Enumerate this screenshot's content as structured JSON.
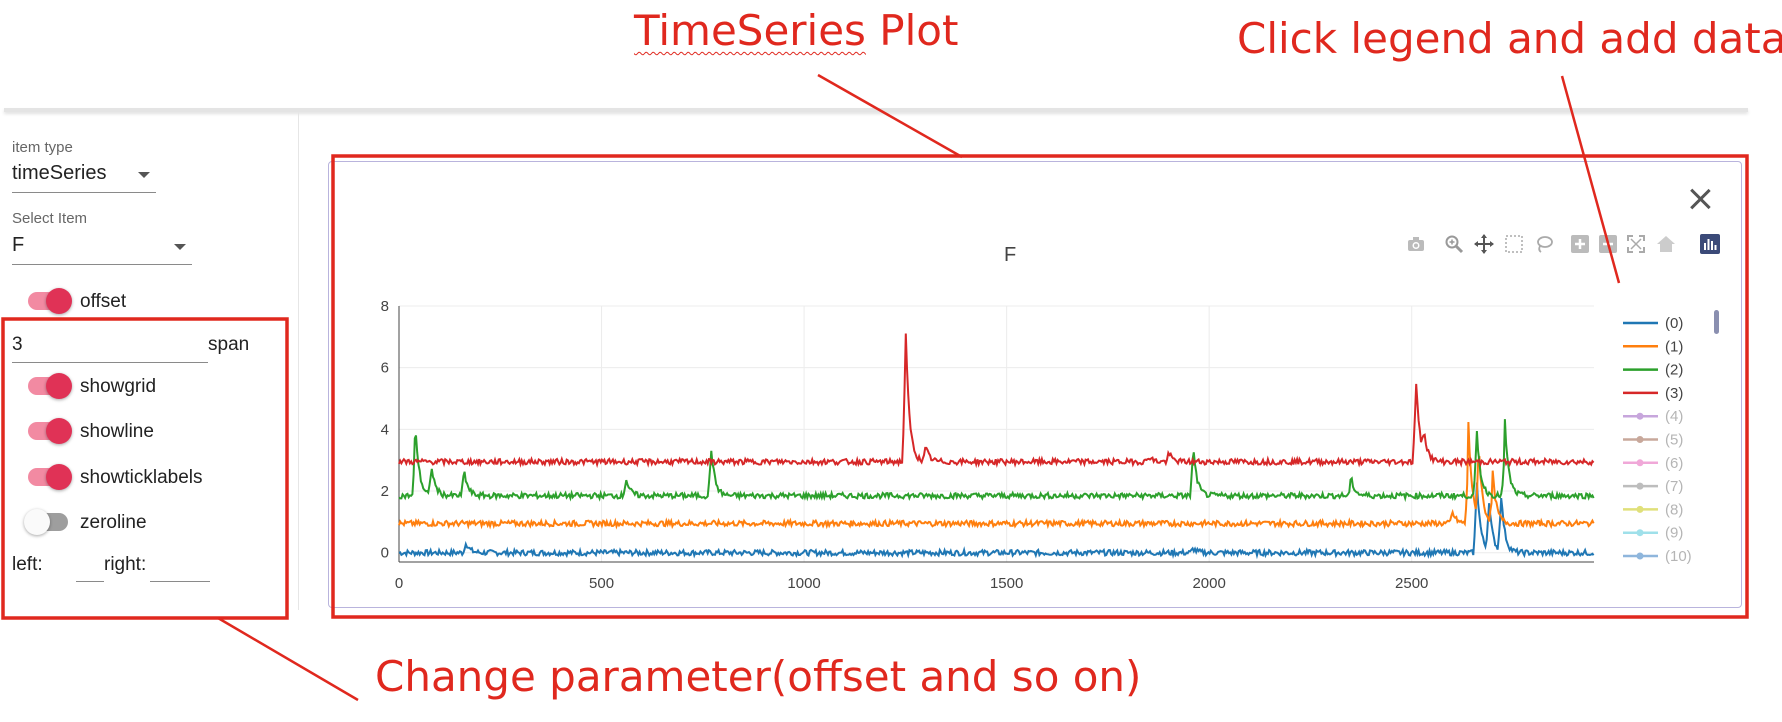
{
  "annotations": {
    "plot_label_a": "TimeSeries",
    "plot_label_b": " Plot",
    "legend_hint": "Click legend and add data",
    "params_hint": "Change parameter(offset and so on)"
  },
  "sidebar": {
    "item_type": {
      "label": "item type",
      "value": "timeSeries"
    },
    "select_item": {
      "label": "Select Item",
      "value": "F"
    },
    "offset": {
      "label": "offset",
      "on": true
    },
    "span": {
      "value": "3",
      "label": "span"
    },
    "showgrid": {
      "label": "showgrid",
      "on": true
    },
    "showline": {
      "label": "showline",
      "on": true
    },
    "showticklabels": {
      "label": "showticklabels",
      "on": true
    },
    "zeroline": {
      "label": "zeroline",
      "on": false
    },
    "left": {
      "label": "left:",
      "value": ""
    },
    "right": {
      "label": "right:",
      "value": ""
    }
  },
  "plot": {
    "title": "F",
    "toolbar": [
      "camera-icon",
      "zoom-icon",
      "pan-icon",
      "box-select-icon",
      "lasso-icon",
      "zoom-in-icon",
      "zoom-out-icon",
      "autoscale-icon",
      "reset-axes-icon",
      "plotly-logo-icon"
    ]
  },
  "chart_data": {
    "type": "line",
    "title": "F",
    "xlabel": "",
    "ylabel": "",
    "xlim": [
      0,
      2950
    ],
    "ylim": [
      -0.3,
      8
    ],
    "xticks": [
      0,
      500,
      1000,
      1500,
      2000,
      2500
    ],
    "yticks": [
      0,
      2,
      4,
      6,
      8
    ],
    "grid": true,
    "legend_position": "right",
    "series": [
      {
        "name": "(0)",
        "color": "#1f77b4",
        "visible": true,
        "base": 0.0,
        "peaks": [
          [
            165,
            0.35
          ],
          [
            1960,
            0.15
          ],
          [
            2660,
            2.6
          ],
          [
            2690,
            1.8
          ],
          [
            2720,
            2.0
          ]
        ]
      },
      {
        "name": "(1)",
        "color": "#ff7f0e",
        "visible": true,
        "base": 0.95,
        "peaks": [
          [
            2600,
            0.4
          ],
          [
            2640,
            3.3
          ],
          [
            2665,
            2.5
          ],
          [
            2700,
            1.6
          ]
        ]
      },
      {
        "name": "(2)",
        "color": "#2ca02c",
        "visible": true,
        "base": 1.85,
        "peaks": [
          [
            40,
            2.5
          ],
          [
            80,
            1.0
          ],
          [
            160,
            0.9
          ],
          [
            560,
            0.6
          ],
          [
            770,
            1.7
          ],
          [
            1960,
            1.7
          ],
          [
            2350,
            0.6
          ],
          [
            2660,
            2.3
          ],
          [
            2730,
            2.4
          ]
        ]
      },
      {
        "name": "(3)",
        "color": "#d62728",
        "visible": true,
        "base": 2.95,
        "peaks": [
          [
            1250,
            4.6
          ],
          [
            1300,
            0.5
          ],
          [
            1850,
            0.2
          ],
          [
            1900,
            0.3
          ],
          [
            2510,
            2.9
          ],
          [
            2530,
            0.8
          ]
        ]
      },
      {
        "name": "(4)",
        "color": "#c7a6dc",
        "visible": false
      },
      {
        "name": "(5)",
        "color": "#c8a89b",
        "visible": false
      },
      {
        "name": "(6)",
        "color": "#f0a8d8",
        "visible": false
      },
      {
        "name": "(7)",
        "color": "#bdbdbd",
        "visible": false
      },
      {
        "name": "(8)",
        "color": "#e0e07a",
        "visible": false
      },
      {
        "name": "(9)",
        "color": "#9fe0ea",
        "visible": false
      },
      {
        "name": "(10)",
        "color": "#8fb6dc",
        "visible": false
      }
    ]
  }
}
